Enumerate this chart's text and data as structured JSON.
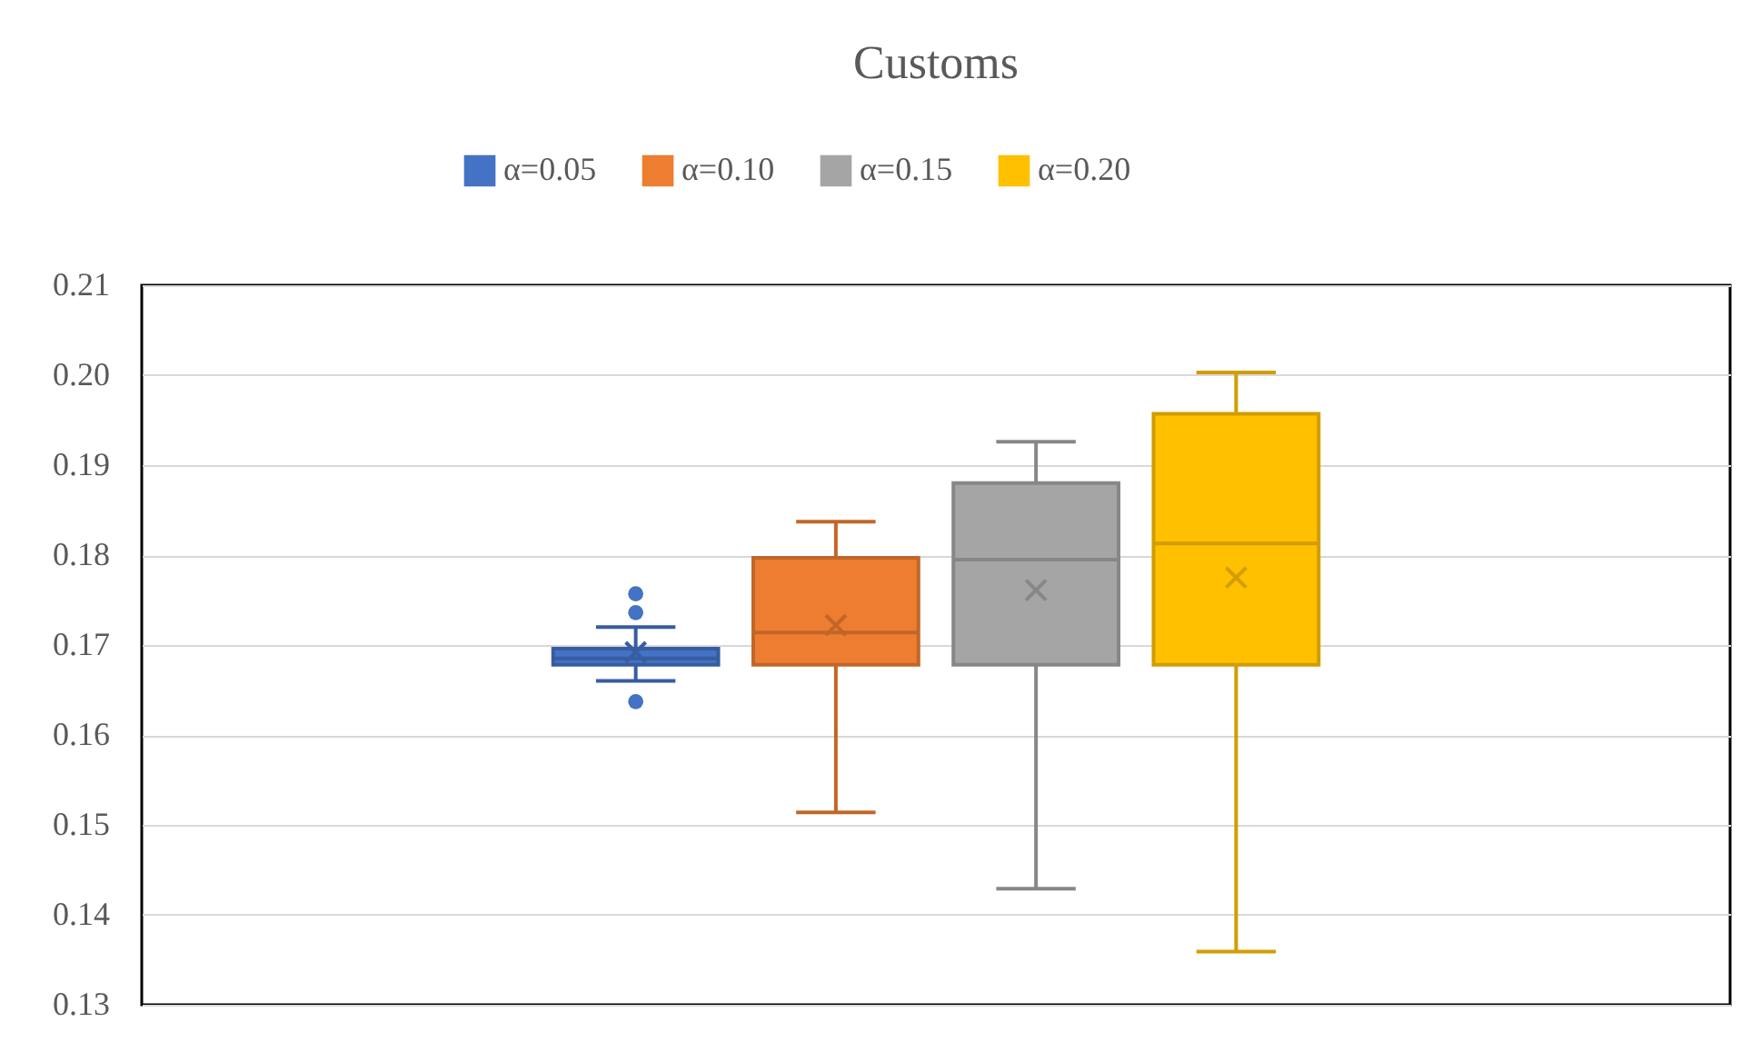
{
  "chart_data": {
    "type": "box",
    "title": "Customs",
    "categories": [
      null
    ],
    "series": [
      {
        "name": "α=0.05",
        "color": "#4472c4",
        "boxes": [
          {
            "low": 0.166,
            "q1": 0.1678,
            "median": 0.1685,
            "q3": 0.1696,
            "high": 0.172,
            "mean": 0.1692,
            "outliers": [
              0.1637,
              0.1736,
              0.1757
            ]
          }
        ]
      },
      {
        "name": "α=0.10",
        "color": "#ed7d31",
        "boxes": [
          {
            "low": 0.1514,
            "q1": 0.1678,
            "median": 0.1714,
            "q3": 0.1797,
            "high": 0.1837,
            "mean": 0.1722
          }
        ]
      },
      {
        "name": "α=0.15",
        "color": "#a5a5a5",
        "boxes": [
          {
            "low": 0.1429,
            "q1": 0.1678,
            "median": 0.1795,
            "q3": 0.188,
            "high": 0.1926,
            "mean": 0.1761
          }
        ]
      },
      {
        "name": "α=0.20",
        "color": "#ffc000",
        "boxes": [
          {
            "low": 0.1359,
            "q1": 0.1678,
            "median": 0.1813,
            "q3": 0.1957,
            "high": 0.2003,
            "mean": 0.1775
          }
        ]
      }
    ],
    "ylim": [
      0.13,
      0.21
    ],
    "yticks": [
      0.13,
      0.14,
      0.15,
      0.16,
      0.17,
      0.18,
      0.19,
      {
        "value": 0.2,
        "label": "0.20"
      },
      0.21
    ],
    "grid": "y",
    "legend": "top",
    "marker": "cross",
    "tick_labels": "y"
  }
}
